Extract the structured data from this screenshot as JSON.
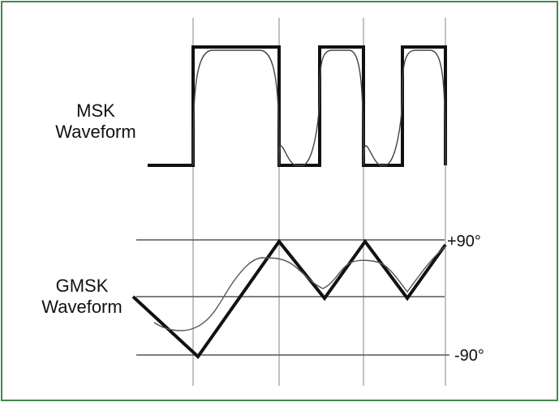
{
  "msk": {
    "label_line1": "MSK",
    "label_line2": "Waveform"
  },
  "gmsk": {
    "label_line1": "GMSK",
    "label_line2": "Waveform"
  },
  "phase_labels": {
    "top": "+90°",
    "bottom": "-90°"
  },
  "colors": {
    "border": "#3c8a4c",
    "grid": "#9a9a9a",
    "stroke": "#111111"
  }
}
